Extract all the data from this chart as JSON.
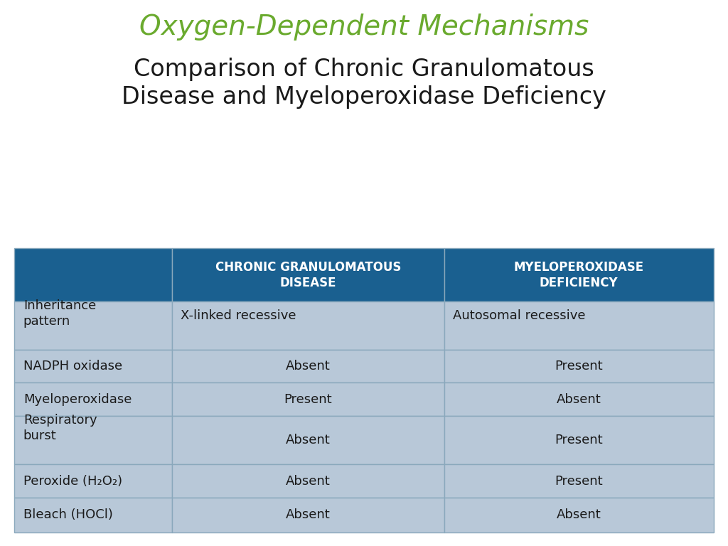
{
  "title_line1": "Oxygen-Dependent Mechanisms",
  "title_line2": "Comparison of Chronic Granulomatous\nDisease and Myeloperoxidase Deficiency",
  "title_color": "#6aaa2e",
  "subtitle_color": "#1a1a1a",
  "header_bg_color": "#1a6090",
  "header_text_color": "#ffffff",
  "row_bg_color": "#b8c8d8",
  "grid_line_color": "#8aa8bc",
  "col_headers": [
    "CHRONIC GRANULOMATOUS\nDISEASE",
    "MYELOPEROXIDASE\nDEFICIENCY"
  ],
  "row_labels": [
    "Inheritance\npattern",
    "NADPH oxidase",
    "Myeloperoxidase",
    "Respiratory\nburst",
    "Peroxide (H₂O₂)",
    "Bleach (HOCl)"
  ],
  "col1_values": [
    "X-linked recessive",
    "Absent",
    "Present",
    "Absent",
    "Absent",
    "Absent"
  ],
  "col2_values": [
    "Autosomal recessive",
    "Present",
    "Absent",
    "Present",
    "Present",
    "Absent"
  ],
  "title_fontsize": 28,
  "subtitle_fontsize": 24,
  "header_fontsize": 12,
  "cell_fontsize": 13
}
